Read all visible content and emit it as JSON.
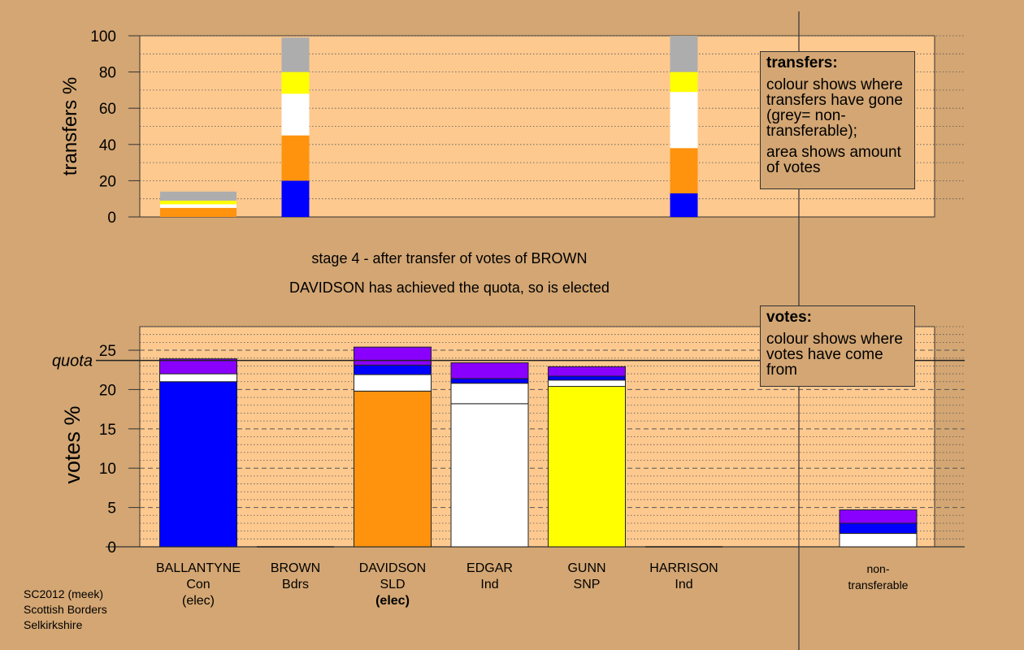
{
  "colors": {
    "page_bg": "#D3A673",
    "plot_bg": "#FDC98F",
    "grey": "#ADADAD",
    "yellow": "#FFFF00",
    "white": "#FFFFFF",
    "orange": "#FF930E",
    "blue": "#0000FF",
    "purple": "#8A00FF"
  },
  "chart_data": [
    {
      "type": "bar",
      "ylabel": "transfers %",
      "ylim": [
        0,
        100
      ],
      "yticks": [
        "0",
        "20",
        "40",
        "60",
        "80",
        "100"
      ],
      "grid": "dotted horizontal",
      "stack_order": [
        "blue",
        "orange",
        "white",
        "yellow",
        "grey"
      ],
      "series_colors": [
        "blue",
        "orange",
        "white",
        "yellow",
        "grey"
      ],
      "columns": [
        {
          "slot": 0,
          "segments": [
            0,
            5,
            2,
            2,
            5
          ]
        },
        {
          "slot": 1,
          "segments": [
            20,
            25,
            23,
            12,
            19
          ]
        },
        {
          "slot": 5,
          "segments": [
            13,
            25,
            31,
            11,
            20
          ]
        }
      ]
    },
    {
      "type": "bar",
      "ylabel": "votes %",
      "ylim": [
        0,
        28
      ],
      "yticks": [
        "0",
        "5",
        "10",
        "15",
        "20",
        "25"
      ],
      "grid": "dashed at 5s, dotted at 1s",
      "quota": 23.7,
      "quota_label": "quota",
      "stack_order": [
        "base",
        "white",
        "blue",
        "purple"
      ],
      "categories": [
        "BALLANTYNE",
        "BROWN",
        "DAVIDSON",
        "EDGAR",
        "GUNN",
        "HARRISON",
        "non-transferable"
      ],
      "candidates": [
        {
          "name": "BALLANTYNE",
          "party": "Con",
          "status": "(elec)",
          "status_bold": false,
          "slot": 0,
          "segments": [
            {
              "color": "blue",
              "value": 21.0
            },
            {
              "color": "white",
              "value": 1.0
            },
            {
              "color": "purple",
              "value": 1.9
            }
          ]
        },
        {
          "name": "BROWN",
          "party": "Bdrs",
          "status": "",
          "status_bold": false,
          "slot": 1,
          "segments": []
        },
        {
          "name": "DAVIDSON",
          "party": "SLD",
          "status": "(elec)",
          "status_bold": true,
          "slot": 2,
          "segments": [
            {
              "color": "orange",
              "value": 19.8
            },
            {
              "color": "white",
              "value": 2.1
            },
            {
              "color": "blue",
              "value": 1.2
            },
            {
              "color": "purple",
              "value": 2.3
            }
          ]
        },
        {
          "name": "EDGAR",
          "party": "Ind",
          "status": "",
          "status_bold": false,
          "slot": 3,
          "segments": [
            {
              "color": "white",
              "value": 18.2
            },
            {
              "color": "white",
              "value": 2.6
            },
            {
              "color": "blue",
              "value": 0.6
            },
            {
              "color": "purple",
              "value": 2.0
            }
          ]
        },
        {
          "name": "GUNN",
          "party": "SNP",
          "status": "",
          "status_bold": false,
          "slot": 4,
          "segments": [
            {
              "color": "yellow",
              "value": 20.4
            },
            {
              "color": "white",
              "value": 0.8
            },
            {
              "color": "blue",
              "value": 0.5
            },
            {
              "color": "purple",
              "value": 1.2
            }
          ]
        },
        {
          "name": "HARRISON",
          "party": "Ind",
          "status": "",
          "status_bold": false,
          "slot": 5,
          "segments": []
        },
        {
          "name": "non-",
          "party": "transferable",
          "status": "",
          "status_bold": false,
          "slot": 7,
          "segments": [
            {
              "color": "white",
              "value": 1.7
            },
            {
              "color": "blue",
              "value": 1.3
            },
            {
              "color": "purple",
              "value": 1.7
            }
          ]
        }
      ]
    }
  ],
  "stage_title": "stage 4 - after transfer of votes of BROWN",
  "stage_subtitle": "DAVIDSON has achieved the quota, so is elected",
  "transfers_legend": {
    "heading": "transfers:",
    "line1": "colour shows where transfers have gone (grey= non-transferable);",
    "line2": "area shows amount of votes"
  },
  "votes_legend": {
    "heading": "votes:",
    "line1": "colour shows where votes have come from"
  },
  "footer": {
    "line1": "SC2012 (meek)",
    "line2": "Scottish Borders",
    "line3": "Selkirkshire"
  }
}
